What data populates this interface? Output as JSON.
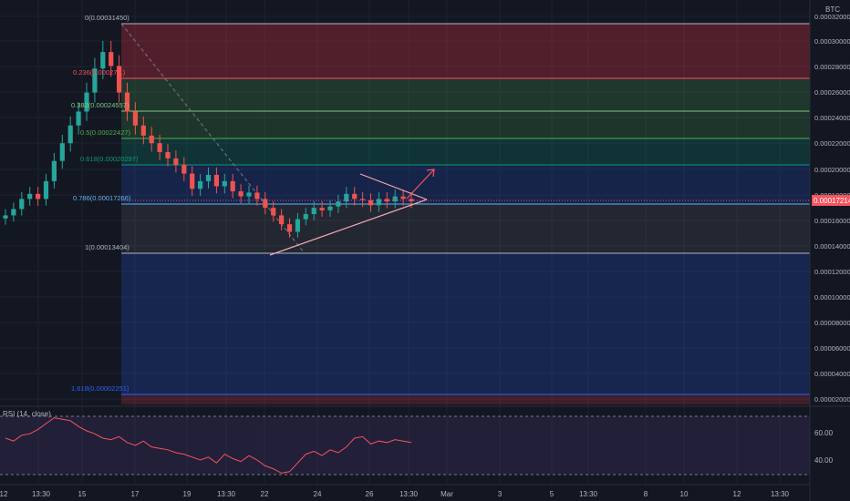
{
  "currency": "BTC",
  "price_badge": "0.00017214",
  "price_axis_labels": [
    "0.00032000",
    "0.00030000",
    "0.00028000",
    "0.00026000",
    "0.00024000",
    "0.00022000",
    "0.00020000",
    "0.00018000",
    "0.00016000",
    "0.00014000",
    "0.00012000",
    "0.00010000",
    "0.00008000",
    "0.00006000",
    "0.00004000",
    "0.00002000"
  ],
  "fib_levels": [
    {
      "label": "0(0.00031450)",
      "color": "#b2b5be"
    },
    {
      "label": "0.236(0.00027...)",
      "color": "#f7525f"
    },
    {
      "label": "0.382(0.00024557)",
      "color": "#81c784"
    },
    {
      "label": "0.5(0.00022427)",
      "color": "#4caf50"
    },
    {
      "label": "0.618(0.00020297)",
      "color": "#089981"
    },
    {
      "label": "0.786(0.00017266)",
      "color": "#64b5f6"
    },
    {
      "label": "1(0.00013404)",
      "color": "#b2b5be"
    },
    {
      "label": "1.618(0.00002251)",
      "color": "#2962ff"
    }
  ],
  "time_axis_labels": [
    "12",
    "13:30",
    "15",
    "17",
    "19",
    "13:30",
    "22",
    "24",
    "26",
    "13:30",
    "Mar",
    "3",
    "5",
    "13:30",
    "8",
    "10",
    "12",
    "13:30"
  ],
  "rsi": {
    "title": "RSI (14, close)",
    "axis_labels": [
      "60.00",
      "40.00"
    ]
  },
  "chart_data": {
    "type": "candlestick",
    "y_unit": "BTC",
    "ylim": [
      0.0,
      0.000325
    ],
    "candles_close_approx": [
      0.000165,
      0.00017,
      0.000178,
      0.000182,
      0.000178,
      0.000192,
      0.000208,
      0.000222,
      0.000236,
      0.000247,
      0.000262,
      0.000281,
      0.000294,
      0.000283,
      0.000262,
      0.000247,
      0.000236,
      0.000228,
      0.000222,
      0.000215,
      0.00021,
      0.000205,
      0.000198,
      0.000186,
      0.000192,
      0.000197,
      0.000188,
      0.000192,
      0.000184,
      0.00018,
      0.000183,
      0.000178,
      0.000171,
      0.000165,
      0.000158,
      0.000152,
      0.000162,
      0.000166,
      0.000171,
      0.000169,
      0.000172,
      0.000176,
      0.000182,
      0.000178,
      0.000177,
      0.000173,
      0.000178,
      0.000176,
      0.00018,
      0.000178,
      0.000176
    ],
    "last_price": 0.00017214,
    "rsi_values_approx": [
      55,
      53,
      57,
      58,
      61,
      65,
      69,
      68,
      67,
      63,
      60,
      58,
      55,
      54,
      56,
      52,
      50,
      53,
      49,
      48,
      47,
      45,
      44,
      42,
      40,
      42,
      38,
      44,
      41,
      39,
      43,
      40,
      36,
      34,
      31,
      32,
      38,
      44,
      46,
      43,
      47,
      45,
      49,
      55,
      56,
      51,
      53,
      52,
      54,
      53,
      52
    ],
    "rsi_levels": [
      70,
      30
    ]
  }
}
